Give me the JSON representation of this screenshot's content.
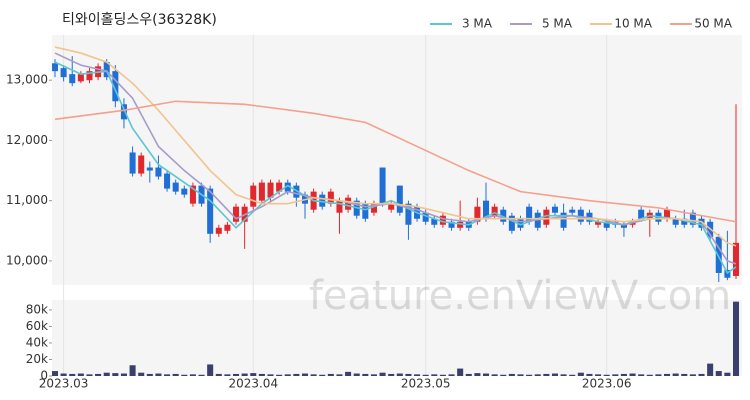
{
  "chart_data": {
    "type": "candlestick",
    "title": "티와이홀딩스우(36328K)",
    "watermark": "feature.enViewV.com",
    "up_color": "#e0282e",
    "down_color": "#1f6fd6",
    "xlim": [
      0,
      79
    ],
    "xticks": [
      {
        "value": 1,
        "label": "2023.03"
      },
      {
        "value": 23,
        "label": "2023.04"
      },
      {
        "value": 43,
        "label": "2023.05"
      },
      {
        "value": 64,
        "label": "2023.06"
      }
    ],
    "ylim": [
      9600,
      13750
    ],
    "yticks": [
      {
        "value": 10000,
        "label": "10,000"
      },
      {
        "value": 11000,
        "label": "11,000"
      },
      {
        "value": 12000,
        "label": "12,000"
      },
      {
        "value": 13000,
        "label": "13,000"
      }
    ],
    "candles": {
      "open": [
        13280,
        13200,
        13100,
        12980,
        13000,
        13050,
        13300,
        13150,
        12600,
        11800,
        11450,
        11550,
        11550,
        11450,
        11300,
        11200,
        10950,
        11250,
        11200,
        10450,
        10500,
        10650,
        10650,
        10900,
        11000,
        11050,
        11150,
        11300,
        11250,
        11100,
        10850,
        11100,
        10950,
        10800,
        10850,
        11000,
        10950,
        10800,
        11550,
        10850,
        11250,
        10950,
        10900,
        10800,
        10700,
        10600,
        10650,
        10550,
        10650,
        10650,
        11000,
        10750,
        10850,
        10750,
        10700,
        10900,
        10800,
        10600,
        10900,
        10800,
        10850,
        10850,
        10800,
        10600,
        10650,
        10650,
        10600,
        10600,
        10850,
        10700,
        10800,
        10700,
        10700,
        10700,
        10800,
        10700,
        10650,
        10400,
        9850,
        9750
      ],
      "high": [
        13350,
        13250,
        13400,
        13150,
        13200,
        13280,
        13350,
        13250,
        12700,
        11900,
        11800,
        11650,
        11750,
        11500,
        11350,
        11250,
        11300,
        11300,
        11250,
        10600,
        10650,
        10950,
        10950,
        11300,
        11350,
        11350,
        11350,
        11350,
        11300,
        11150,
        11200,
        11150,
        11200,
        11050,
        11100,
        11050,
        11000,
        11000,
        11550,
        11000,
        11250,
        11000,
        10950,
        10850,
        10750,
        10800,
        10700,
        11000,
        10700,
        11050,
        11300,
        10950,
        10900,
        10800,
        10750,
        10950,
        10850,
        10900,
        10950,
        10950,
        10900,
        10900,
        10850,
        10700,
        10700,
        10700,
        10650,
        10700,
        10900,
        10850,
        10850,
        10900,
        10750,
        10850,
        10850,
        10750,
        10700,
        10450,
        10500,
        12600
      ],
      "low": [
        13050,
        12980,
        12900,
        12950,
        12950,
        13000,
        13000,
        12550,
        12200,
        11400,
        11400,
        11300,
        11350,
        11150,
        11100,
        11050,
        10900,
        10900,
        10300,
        10400,
        10450,
        10600,
        10200,
        10850,
        10950,
        11000,
        11100,
        11100,
        10900,
        10700,
        10800,
        10850,
        10900,
        10450,
        10800,
        10700,
        10650,
        10750,
        10900,
        10800,
        10750,
        10350,
        10650,
        10600,
        10550,
        10550,
        10500,
        10500,
        10500,
        10600,
        10650,
        10700,
        10600,
        10450,
        10500,
        10600,
        10500,
        10550,
        10750,
        10500,
        10750,
        10600,
        10600,
        10550,
        10500,
        10550,
        10400,
        10550,
        10650,
        10400,
        10600,
        10650,
        10550,
        10550,
        10550,
        10500,
        10350,
        9650,
        9680,
        9700
      ],
      "close": [
        13150,
        13050,
        12950,
        13100,
        13150,
        13230,
        13050,
        12650,
        12350,
        11450,
        11750,
        11500,
        11400,
        11200,
        11150,
        11100,
        11250,
        10950,
        10450,
        10550,
        10600,
        10900,
        10900,
        11250,
        11300,
        11300,
        11300,
        11150,
        11050,
        10950,
        11150,
        10900,
        11150,
        11000,
        11050,
        10750,
        10700,
        10950,
        10950,
        10950,
        10800,
        10600,
        10700,
        10650,
        10600,
        10750,
        10550,
        10650,
        10550,
        10900,
        10700,
        10900,
        10650,
        10500,
        10550,
        10650,
        10550,
        10850,
        10800,
        10550,
        10800,
        10650,
        10650,
        10650,
        10550,
        10600,
        10550,
        10650,
        10700,
        10800,
        10650,
        10850,
        10600,
        10600,
        10600,
        10550,
        10400,
        9800,
        9720,
        10300
      ]
    },
    "series": [
      {
        "name": "3 MA",
        "color": "#5cc6d3",
        "x": [
          0,
          3,
          6,
          9,
          12,
          15,
          18,
          21,
          24,
          27,
          30,
          33,
          36,
          39,
          42,
          45,
          48,
          51,
          54,
          57,
          60,
          63,
          66,
          69,
          72,
          75,
          78,
          79
        ],
        "values": [
          13300,
          13100,
          13150,
          12200,
          11600,
          11300,
          11000,
          10550,
          10950,
          11250,
          11000,
          10950,
          10850,
          11000,
          10800,
          10650,
          10600,
          10800,
          10600,
          10750,
          10750,
          10650,
          10600,
          10750,
          10700,
          10600,
          9800,
          9900
        ]
      },
      {
        "name": "5 MA",
        "color": "#a99bc9",
        "x": [
          0,
          3,
          6,
          9,
          12,
          15,
          18,
          21,
          24,
          27,
          30,
          33,
          36,
          39,
          42,
          45,
          48,
          51,
          54,
          57,
          60,
          63,
          66,
          69,
          72,
          75,
          78,
          79
        ],
        "values": [
          13450,
          13250,
          13150,
          12700,
          11900,
          11500,
          11150,
          10700,
          10900,
          11150,
          11050,
          11000,
          10900,
          10950,
          10850,
          10700,
          10650,
          10750,
          10650,
          10700,
          10750,
          10700,
          10600,
          10700,
          10700,
          10650,
          10000,
          9950
        ]
      },
      {
        "name": "10 MA",
        "color": "#f2c48d",
        "x": [
          0,
          3,
          6,
          9,
          12,
          15,
          18,
          21,
          24,
          27,
          30,
          33,
          36,
          39,
          42,
          45,
          48,
          51,
          54,
          57,
          60,
          63,
          66,
          69,
          72,
          75,
          78,
          79
        ],
        "values": [
          13550,
          13450,
          13300,
          12950,
          12500,
          12000,
          11500,
          11100,
          10950,
          10950,
          11050,
          11000,
          10950,
          10950,
          10900,
          10800,
          10700,
          10700,
          10700,
          10700,
          10700,
          10700,
          10650,
          10700,
          10700,
          10650,
          10300,
          10250
        ]
      },
      {
        "name": "50 MA",
        "color": "#f4a08c",
        "x": [
          0,
          8,
          14,
          22,
          30,
          36,
          42,
          48,
          54,
          62,
          70,
          79
        ],
        "values": [
          12350,
          12500,
          12650,
          12600,
          12450,
          12300,
          11900,
          11500,
          11150,
          11000,
          10880,
          10650
        ]
      }
    ],
    "volume": {
      "color": "#3b3f6b",
      "ylim": [
        0,
        92000
      ],
      "yticks": [
        0,
        {
          "value": 20000,
          "label": "20k"
        },
        {
          "value": 40000,
          "label": "40k"
        },
        {
          "value": 60000,
          "label": "60k"
        },
        {
          "value": 80000,
          "label": "80k"
        }
      ],
      "values": [
        6000,
        3000,
        2500,
        3000,
        2000,
        2500,
        4000,
        3500,
        3000,
        13000,
        4000,
        2500,
        3000,
        2000,
        2500,
        1500,
        2000,
        1500,
        14000,
        2500,
        2000,
        2500,
        3000,
        3500,
        2500,
        2000,
        1500,
        2000,
        2500,
        3000,
        2000,
        1500,
        2500,
        2000,
        5000,
        3000,
        2500,
        2000,
        4000,
        2500,
        3000,
        2500,
        2000,
        1500,
        2000,
        1500,
        2000,
        9000,
        2500,
        3500,
        3000,
        2000,
        1500,
        2500,
        2000,
        1500,
        2000,
        2500,
        3000,
        2000,
        1500,
        4000,
        2500,
        2000,
        1500,
        2000,
        2500,
        3000,
        2000,
        1500,
        2000,
        2500,
        3000,
        2500,
        2000,
        2500,
        15000,
        6000,
        4000,
        90000
      ]
    }
  }
}
